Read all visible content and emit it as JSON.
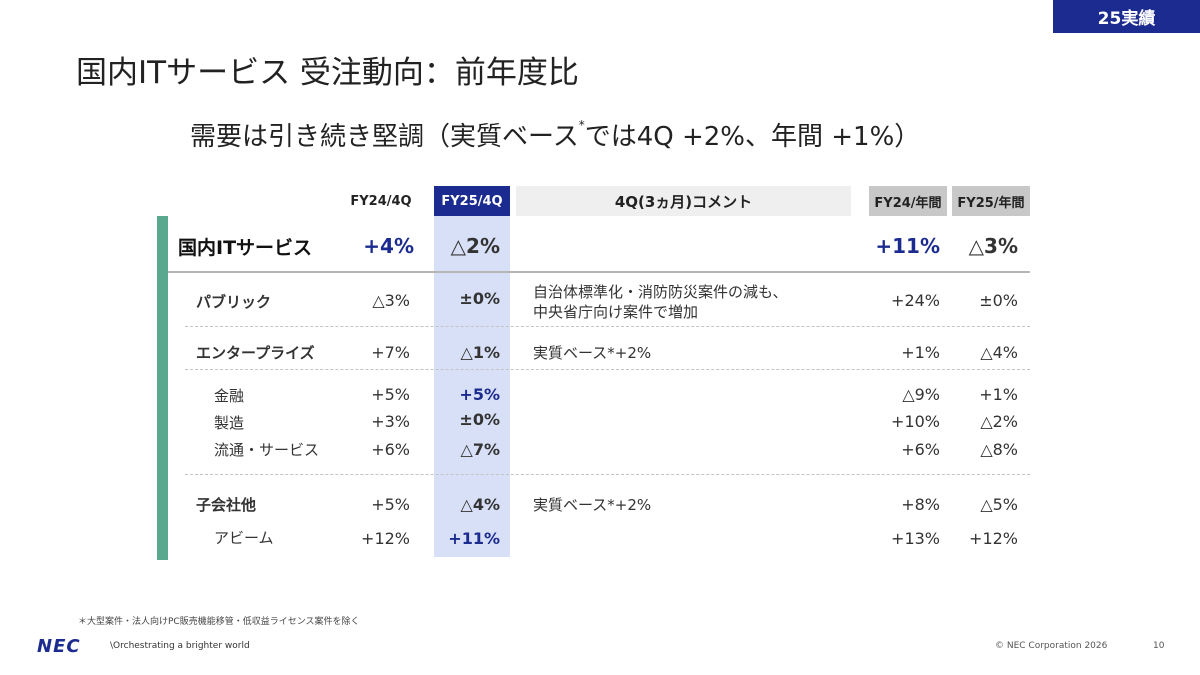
{
  "badge": "25実績",
  "title": "国内ITサービス 受注動向：前年度比",
  "subtitle": {
    "text": "需要は引き続き堅調（実質ベース",
    "mark": "*",
    "text2": "では4Q +2%、年間 +1%）"
  },
  "headers": {
    "fy24_4q": "FY24/4Q",
    "fy25_4q": "FY25/4Q",
    "comment": "4Q(3ヵ月)コメント",
    "fy24_year": "FY24/年間",
    "fy25_year": "FY25/年間"
  },
  "rows": [
    {
      "label": "国内ITサービス",
      "fy24_4q": "+4%",
      "fy25_4q": "△2%",
      "comment": "",
      "fy24_year": "+11%",
      "fy25_year": "△3%"
    },
    {
      "label": "パブリック",
      "fy24_4q": "△3%",
      "fy25_4q": "±0%",
      "comment": "自治体標準化・消防防災案件の減も、",
      "comment2": "中央省庁向け案件で増加",
      "fy24_year": "+24%",
      "fy25_year": "±0%"
    },
    {
      "label": "エンタープライズ",
      "fy24_4q": "+7%",
      "fy25_4q": "△1%",
      "comment": "実質ベース*+2%",
      "fy24_year": "+1%",
      "fy25_year": "△4%"
    },
    {
      "label": "金融",
      "fy24_4q": "+5%",
      "fy25_4q": "+5%",
      "fy24_year": "△9%",
      "fy25_year": "+1%"
    },
    {
      "label": "製造",
      "fy24_4q": "+3%",
      "fy25_4q": "±0%",
      "fy24_year": "+10%",
      "fy25_year": "△2%"
    },
    {
      "label": "流通・サービス",
      "fy24_4q": "+6%",
      "fy25_4q": "△7%",
      "fy24_year": "+6%",
      "fy25_year": "△8%"
    },
    {
      "label": "子会社他",
      "fy24_4q": "+5%",
      "fy25_4q": "△4%",
      "comment": "実質ベース*+2%",
      "fy24_year": "+8%",
      "fy25_year": "△5%"
    },
    {
      "label": "アビーム",
      "fy24_4q": "+12%",
      "fy25_4q": "+11%",
      "fy24_year": "+13%",
      "fy25_year": "+12%"
    }
  ],
  "footnote": "＊大型案件・法人向けPC販売機能移管・低収益ライセンス案件を除く",
  "footer": {
    "logo": "NEC",
    "tagline": "\\Orchestrating a brighter world",
    "copyright": "© NEC Corporation 2026",
    "page": "10"
  },
  "colors": {
    "accent_navy": "#1c2b8f",
    "highlight_col": "#d8e0f7",
    "green_bar": "#5aa98f"
  }
}
